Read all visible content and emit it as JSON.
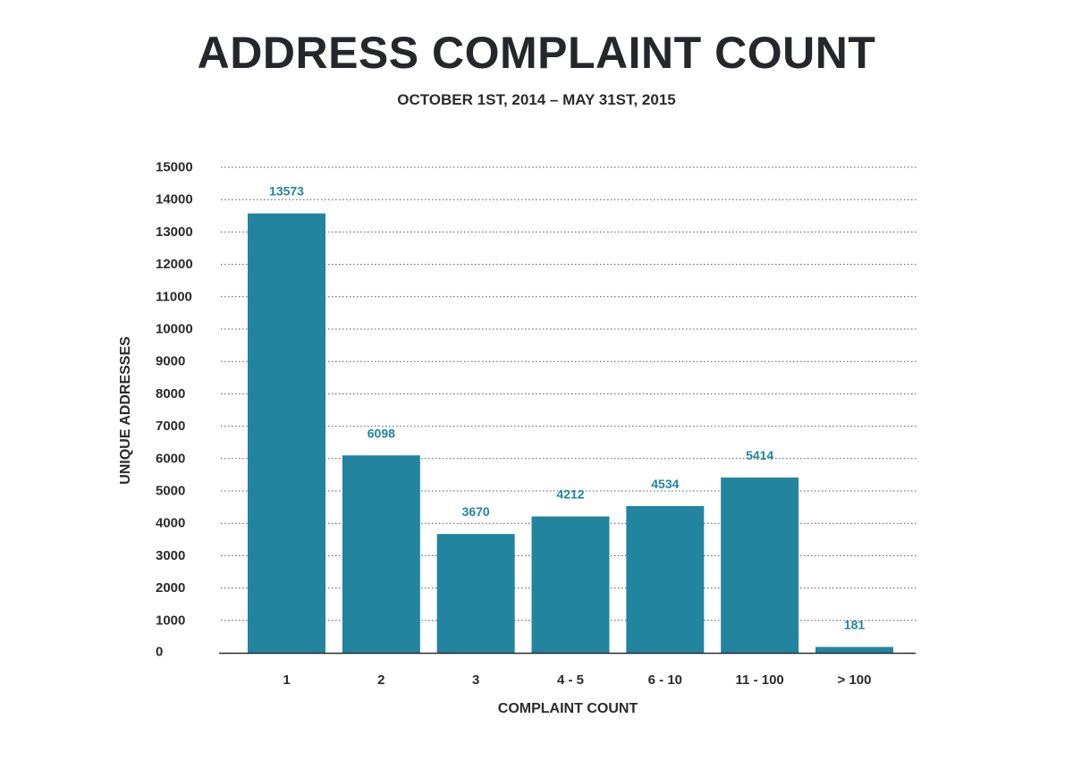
{
  "chart_data": {
    "type": "bar",
    "title": "ADDRESS COMPLAINT COUNT",
    "subtitle": "OCTOBER 1ST, 2014 – MAY 31ST, 2015",
    "xlabel": "COMPLAINT COUNT",
    "ylabel": "UNIQUE ADDRESSES",
    "categories": [
      "1",
      "2",
      "3",
      "4 - 5",
      "6 - 10",
      "11 - 100",
      "> 100"
    ],
    "values": [
      13573,
      6098,
      3670,
      4212,
      4534,
      5414,
      181
    ],
    "data_labels": [
      "13573",
      "6098",
      "3670",
      "4212",
      "4534",
      "5414",
      "181"
    ],
    "ylim": [
      0,
      15000
    ],
    "yticks": [
      0,
      1000,
      2000,
      3000,
      4000,
      5000,
      6000,
      7000,
      8000,
      9000,
      10000,
      11000,
      12000,
      13000,
      14000,
      15000
    ],
    "ytick_labels": [
      "0",
      "1000",
      "2000",
      "3000",
      "4000",
      "5000",
      "6000",
      "7000",
      "8000",
      "9000",
      "10000",
      "11000",
      "12000",
      "13000",
      "14000",
      "15000"
    ],
    "grid": true,
    "grid_style": "dotted",
    "legend": "none",
    "colors": {
      "bar": "#23849f",
      "data_label": "#23849f",
      "text": "#2a2b2d",
      "grid": "#555555",
      "axis": "#2a2b2d"
    }
  }
}
